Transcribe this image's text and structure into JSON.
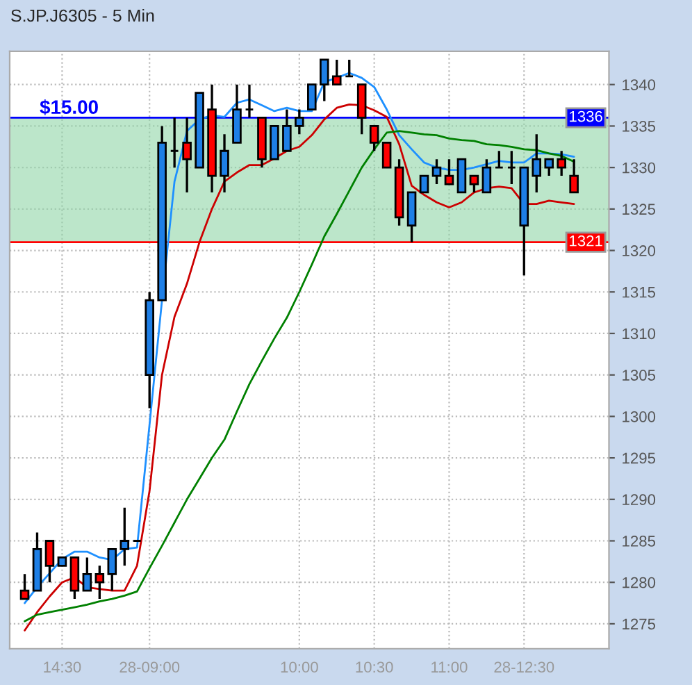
{
  "chart_data": {
    "type": "candlestick",
    "title": "S.JP.J6305 - 5 Min",
    "categories": [
      null,
      null,
      null,
      "14:30",
      null,
      null,
      null,
      null,
      null,
      null,
      "28-09:00",
      null,
      null,
      null,
      null,
      null,
      null,
      null,
      null,
      null,
      null,
      null,
      "10:00",
      null,
      null,
      null,
      null,
      null,
      "10:30",
      null,
      null,
      null,
      null,
      null,
      "11:00",
      null,
      null,
      null,
      null,
      null,
      "28-12:30",
      null,
      null,
      null,
      null
    ],
    "ohlc": [
      [
        1279,
        1281,
        1278,
        1278
      ],
      [
        1279,
        1286,
        1279,
        1284
      ],
      [
        1285,
        1285,
        1280,
        1282
      ],
      [
        1282,
        1283,
        1282,
        1283
      ],
      [
        1283,
        1283,
        1278,
        1279
      ],
      [
        1279,
        1283,
        1279,
        1281
      ],
      [
        1281,
        1282,
        1278,
        1280
      ],
      [
        1281,
        1284,
        1279,
        1284
      ],
      [
        1284,
        1289,
        1282,
        1285
      ],
      [
        1285,
        1285,
        1285,
        1285
      ],
      [
        1305,
        1315,
        1301,
        1314
      ],
      [
        1314,
        1335,
        1314,
        1333
      ],
      [
        1332,
        1336,
        1330,
        1332
      ],
      [
        1333,
        1336,
        1327,
        1331
      ],
      [
        1330,
        1339,
        1330,
        1339
      ],
      [
        1337,
        1340,
        1327,
        1329
      ],
      [
        1329,
        1334,
        1327,
        1332
      ],
      [
        1333,
        1340,
        1333,
        1337
      ],
      [
        1337,
        1340,
        1336,
        1337
      ],
      [
        1336,
        1336,
        1330,
        1331
      ],
      [
        1331,
        1335,
        1331,
        1335
      ],
      [
        1332,
        1337,
        1332,
        1335
      ],
      [
        1335,
        1337,
        1334,
        1336
      ],
      [
        1337,
        1340,
        1337,
        1340
      ],
      [
        1340,
        1343,
        1338,
        1343
      ],
      [
        1341,
        1343,
        1340,
        1340
      ],
      [
        1341,
        1343,
        1341,
        1341
      ],
      [
        1340,
        1340,
        1334,
        1336
      ],
      [
        1335,
        1335,
        1332,
        1333
      ],
      [
        1333,
        1333,
        1330,
        1330
      ],
      [
        1330,
        1331,
        1323,
        1324
      ],
      [
        1323,
        1327,
        1321,
        1327
      ],
      [
        1327,
        1329,
        1327,
        1329
      ],
      [
        1329,
        1331,
        1328,
        1330
      ],
      [
        1329,
        1331,
        1328,
        1328
      ],
      [
        1327,
        1331,
        1327,
        1331
      ],
      [
        1329,
        1329,
        1327,
        1328
      ],
      [
        1327,
        1331,
        1327,
        1330
      ],
      [
        1330,
        1332,
        1330,
        1330
      ],
      [
        1330,
        1332,
        1328,
        1330
      ],
      [
        1323,
        1330,
        1317,
        1330
      ],
      [
        1329,
        1334,
        1327,
        1331
      ],
      [
        1330,
        1331,
        1329,
        1331
      ],
      [
        1331,
        1332,
        1329,
        1330
      ],
      [
        1329,
        1331,
        1327,
        1327
      ]
    ],
    "colors": [
      "#ff0000",
      "#1e7fe6",
      "#ff0000",
      "#1e7fe6",
      "#ff0000",
      "#1e7fe6",
      "#ff0000",
      "#1e7fe6",
      "#1e7fe6",
      "#000000",
      "#1e7fe6",
      "#1e7fe6",
      "#000000",
      "#ff0000",
      "#1e7fe6",
      "#ff0000",
      "#1e7fe6",
      "#1e7fe6",
      "#000000",
      "#ff0000",
      "#1e7fe6",
      "#1e7fe6",
      "#1e7fe6",
      "#1e7fe6",
      "#1e7fe6",
      "#ff0000",
      "#000000",
      "#ff0000",
      "#ff0000",
      "#ff0000",
      "#ff0000",
      "#1e7fe6",
      "#1e7fe6",
      "#1e7fe6",
      "#ff0000",
      "#1e7fe6",
      "#ff0000",
      "#1e7fe6",
      "#000000",
      "#000000",
      "#1e7fe6",
      "#1e7fe6",
      "#1e7fe6",
      "#ff0000",
      "#ff0000"
    ],
    "series": [
      {
        "type": "line",
        "color": "#1e90ff",
        "values": [
          1277.5,
          1279.4,
          1281.1,
          1282.8,
          1283.7,
          1283.7,
          1283,
          1282.7,
          1284,
          1284.2,
          1299,
          1314,
          1328.3,
          1334.4,
          1335.8,
          1336.3,
          1336.1,
          1337.8,
          1338.2,
          1337.5,
          1336.8,
          1337.2,
          1336.8,
          1336.8,
          1340.3,
          1340.8,
          1341.4,
          1340.8,
          1339.7,
          1337,
          1333.9,
          1332.2,
          1330.6,
          1330,
          1329.7,
          1329.7,
          1330,
          1330.4,
          1330.8,
          1330.6,
          1330.6,
          1331.7,
          1331.7,
          1331.6,
          1331.3
        ]
      },
      {
        "type": "line",
        "color": "#cc0000",
        "values": [
          1274.2,
          1276.4,
          1278.3,
          1280,
          1280.6,
          1279.4,
          1279.2,
          1279,
          1279,
          1282,
          1291,
          1305,
          1312,
          1316,
          1321,
          1325,
          1328.3,
          1329.4,
          1330.3,
          1330.3,
          1331.1,
          1332,
          1332.5,
          1333.9,
          1335.8,
          1337.2,
          1337.6,
          1337.5,
          1336.9,
          1336.1,
          1332.8,
          1327.8,
          1326.7,
          1325.8,
          1325.2,
          1325.8,
          1327,
          1327.5,
          1327.7,
          1327.5,
          1325.6,
          1325.6,
          1326,
          1325.8,
          1325.6
        ]
      },
      {
        "type": "line",
        "color": "#008000",
        "values": [
          1275.3,
          1276.1,
          1276.4,
          1276.7,
          1277,
          1277.3,
          1277.7,
          1278,
          1278.4,
          1278.9,
          1281.7,
          1284.4,
          1287.2,
          1290,
          1292.5,
          1295,
          1297.2,
          1300.6,
          1303.9,
          1306.7,
          1309.4,
          1311.9,
          1315,
          1318.3,
          1321.7,
          1324.4,
          1327.2,
          1330,
          1332.2,
          1334.2,
          1334.4,
          1334.2,
          1334,
          1333.9,
          1333.5,
          1333.3,
          1333.2,
          1332.8,
          1332.7,
          1332.5,
          1332.2,
          1332.1,
          1331.7,
          1331.4,
          1330.7
        ]
      }
    ],
    "ylim": [
      1272,
      1344
    ],
    "yticks": [
      1275,
      1280,
      1285,
      1290,
      1295,
      1300,
      1305,
      1310,
      1315,
      1320,
      1325,
      1330,
      1335,
      1340
    ],
    "ref_lines": [
      {
        "axis": "y",
        "value": 1336,
        "label": "1336",
        "color": "#0000ff"
      },
      {
        "axis": "y",
        "value": 1321,
        "label": "1321",
        "color": "#ff0000"
      }
    ],
    "bands": [
      {
        "axis": "y",
        "from": 1321,
        "to": 1336,
        "color": "#8fd5a6"
      }
    ],
    "annotations": [
      "$15.00"
    ],
    "grid": true,
    "legend": false,
    "marker": "none",
    "line_style": "solid"
  }
}
